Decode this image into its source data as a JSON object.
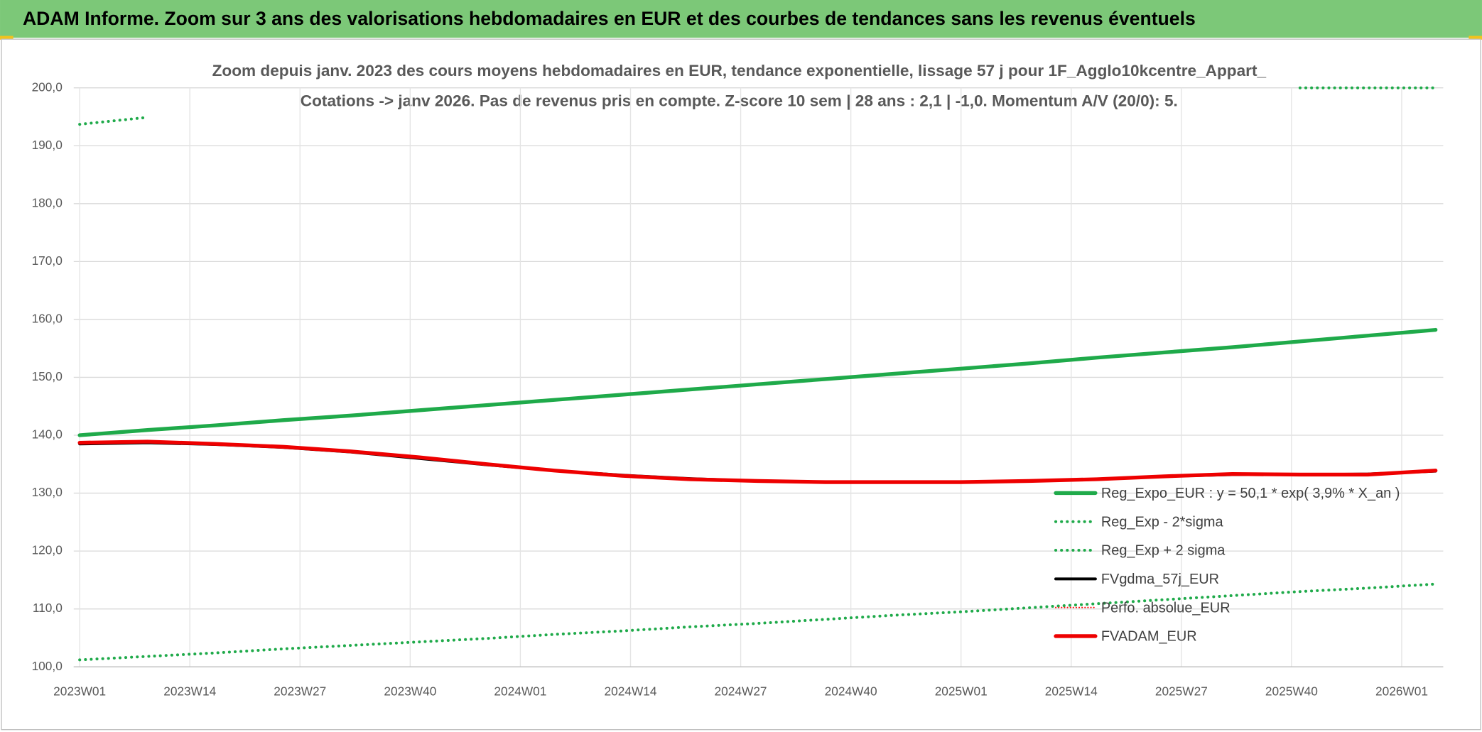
{
  "header": {
    "title": "ADAM Informe. Zoom sur 3 ans des valorisations hebdomadaires en EUR et des courbes de tendances sans les revenus éventuels"
  },
  "chart_data": {
    "type": "line",
    "title": [
      "Zoom depuis janv. 2023 des cours moyens hebdomadaires en EUR, tendance exponentielle, lissage 57 j pour 1F_Agglo10kcentre_Appart_",
      "Cotations -> janv 2026. Pas de revenus pris en compte. Z-score 10 sem | 28 ans : 2,1 | -1,0. Momentum A/V (20/0): 5."
    ],
    "x": [
      0,
      8,
      16,
      24,
      32,
      40,
      48,
      56,
      64,
      72,
      80,
      88,
      96,
      104,
      112,
      120,
      128,
      136,
      144,
      152,
      160
    ],
    "xlim": [
      -0.7,
      160.9
    ],
    "xticks": [
      {
        "value": 0,
        "label": "2023W01"
      },
      {
        "value": 13,
        "label": "2023W14"
      },
      {
        "value": 26,
        "label": "2023W27"
      },
      {
        "value": 39,
        "label": "2023W40"
      },
      {
        "value": 52,
        "label": "2024W01"
      },
      {
        "value": 65,
        "label": "2024W14"
      },
      {
        "value": 78,
        "label": "2024W27"
      },
      {
        "value": 91,
        "label": "2024W40"
      },
      {
        "value": 104,
        "label": "2025W01"
      },
      {
        "value": 117,
        "label": "2025W14"
      },
      {
        "value": 130,
        "label": "2025W27"
      },
      {
        "value": 143,
        "label": "2025W40"
      },
      {
        "value": 156,
        "label": "2026W01"
      }
    ],
    "ylim": [
      100,
      200
    ],
    "yticks": [
      {
        "value": 100,
        "label": "100,0"
      },
      {
        "value": 110,
        "label": "110,0"
      },
      {
        "value": 120,
        "label": "120,0"
      },
      {
        "value": 130,
        "label": "130,0"
      },
      {
        "value": 140,
        "label": "140,0"
      },
      {
        "value": 150,
        "label": "150,0"
      },
      {
        "value": 160,
        "label": "160,0"
      },
      {
        "value": 170,
        "label": "170,0"
      },
      {
        "value": 180,
        "label": "180,0"
      },
      {
        "value": 190,
        "label": "190,0"
      },
      {
        "value": 200,
        "label": "200,0"
      }
    ],
    "grid": true,
    "legend": "lower right",
    "series": [
      {
        "name": "Reg_Expo_EUR : y = 50,1 * exp( 3,9% *  X_an )",
        "color": "#1faa4a",
        "line_style": "solid",
        "linewidth": 4,
        "values": [
          140.0,
          140.9,
          141.7,
          142.6,
          143.4,
          144.3,
          145.2,
          146.1,
          147.0,
          147.9,
          148.8,
          149.7,
          150.6,
          151.5,
          152.4,
          153.4,
          154.3,
          155.2,
          156.2,
          157.2,
          158.2
        ]
      },
      {
        "name": "Reg_Exp - 2*sigma",
        "color": "#1faa4a",
        "line_style": "dotted",
        "linewidth": 3,
        "values": [
          101.2,
          101.8,
          102.4,
          103.1,
          103.7,
          104.3,
          104.9,
          105.6,
          106.2,
          106.9,
          107.5,
          108.2,
          108.9,
          109.5,
          110.2,
          110.9,
          111.6,
          112.3,
          113.0,
          113.6,
          114.3
        ]
      },
      {
        "name": "Reg_Exp + 2 sigma",
        "color": "#1faa4a",
        "line_style": "dotted",
        "linewidth": 3,
        "values": [
          193.7,
          194.9,
          null,
          null,
          null,
          null,
          null,
          null,
          null,
          null,
          null,
          null,
          null,
          null,
          null,
          null,
          null,
          null,
          200.0,
          200.0,
          200.0
        ]
      },
      {
        "name": "FVgdma_57j_EUR",
        "color": "#000000",
        "line_style": "solid",
        "linewidth": 3,
        "values": [
          138.5,
          138.7,
          138.4,
          137.9,
          137.1,
          136.0,
          134.9,
          133.9,
          133.1,
          132.5,
          132.1,
          131.9,
          131.9,
          131.9,
          132.1,
          132.4,
          132.9,
          133.2,
          133.2,
          133.3,
          133.8
        ]
      },
      {
        "name": "Perfo. absolue_EUR",
        "color": "#ff0000",
        "line_style": "dotted",
        "linewidth": 1.5,
        "values": [
          138.7,
          138.9,
          138.5,
          138.0,
          137.2,
          136.2,
          135.0,
          133.9,
          133.0,
          132.4,
          132.1,
          131.9,
          131.9,
          131.9,
          132.1,
          132.4,
          132.9,
          133.3,
          133.2,
          133.2,
          133.9
        ]
      },
      {
        "name": "FVADAM_EUR",
        "color": "#ee0000",
        "line_style": "solid",
        "linewidth": 4,
        "values": [
          138.7,
          138.9,
          138.5,
          138.0,
          137.2,
          136.2,
          135.0,
          133.9,
          133.0,
          132.4,
          132.1,
          131.9,
          131.9,
          131.9,
          132.1,
          132.4,
          132.9,
          133.3,
          133.2,
          133.2,
          133.9
        ]
      }
    ]
  }
}
